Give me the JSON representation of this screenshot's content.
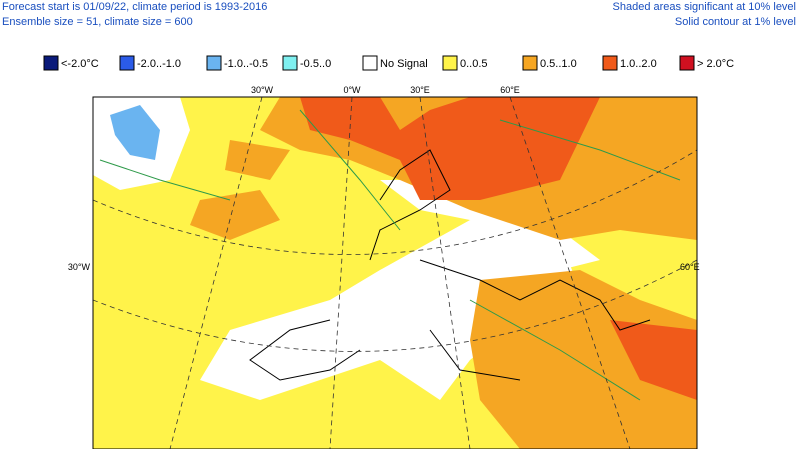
{
  "header": {
    "left": [
      "Forecast start is 01/09/22, climate period is 1993-2016",
      "Ensemble size = 51, climate size = 600"
    ],
    "right": [
      "Shaded areas significant at 10% level",
      "Solid contour at 1% level"
    ]
  },
  "legend": [
    {
      "label": "<-2.0°C",
      "color": "#0a1a7a"
    },
    {
      "label": "-2.0..-1.0",
      "color": "#2b5be8"
    },
    {
      "label": "-1.0..-0.5",
      "color": "#6ab4f0"
    },
    {
      "label": "-0.5..0",
      "color": "#7ff0f0"
    },
    {
      "label": "No Signal",
      "color": "#ffffff"
    },
    {
      "label": "0..0.5",
      "color": "#fff34a"
    },
    {
      "label": "0.5..1.0",
      "color": "#f5a623"
    },
    {
      "label": "1.0..2.0",
      "color": "#f05a1a"
    },
    {
      "label": "> 2.0°C",
      "color": "#d01020"
    }
  ],
  "graticule": {
    "top": [
      "30°W",
      "0°W",
      "30°E",
      "60°E"
    ],
    "left": "30°W",
    "right": "60°E"
  }
}
